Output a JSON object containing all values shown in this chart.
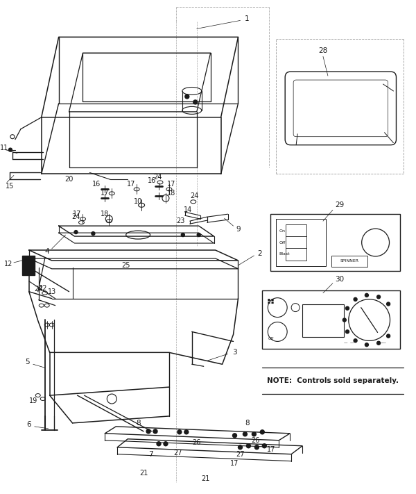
{
  "bg_color": "#ffffff",
  "line_color": "#1a1a1a",
  "fig_width": 6.0,
  "fig_height": 7.11,
  "dpi": 100,
  "note_text": "NOTE:  Controls sold separately.",
  "on_off_blast": [
    "On",
    "Off",
    "Blast"
  ],
  "spinner_text": "SPINNER"
}
